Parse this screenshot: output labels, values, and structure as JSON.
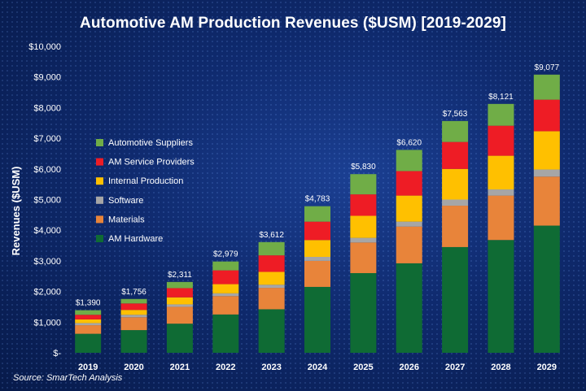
{
  "title": "Automotive AM Production Revenues ($USM) [2019-2029]",
  "source": "Source: SmarTech Analysis",
  "chart_data": {
    "type": "bar",
    "stacked": true,
    "title": "Automotive AM Production Revenues ($USM) [2019-2029]",
    "xlabel": "",
    "ylabel": "Revenues ($USM)",
    "ylim": [
      0,
      10000
    ],
    "yticks": [
      0,
      1000,
      2000,
      3000,
      4000,
      5000,
      6000,
      7000,
      8000,
      9000,
      10000
    ],
    "ytick_labels": [
      "$-",
      "$1,000",
      "$2,000",
      "$3,000",
      "$4,000",
      "$5,000",
      "$6,000",
      "$7,000",
      "$8,000",
      "$9,000",
      "$10,000"
    ],
    "categories": [
      "2019",
      "2020",
      "2021",
      "2022",
      "2023",
      "2024",
      "2025",
      "2026",
      "2027",
      "2028",
      "2029"
    ],
    "totals": [
      1390,
      1756,
      2311,
      2979,
      3612,
      4783,
      5830,
      6620,
      7563,
      8121,
      9077
    ],
    "total_labels": [
      "$1,390",
      "$1,756",
      "$2,311",
      "$2,979",
      "$3,612",
      "$4,783",
      "$5,830",
      "$6,620",
      "$7,563",
      "$8,121",
      "$9,077"
    ],
    "legend_position": "left",
    "grid": false,
    "series": [
      {
        "name": "AM Hardware",
        "color": "#0f6b34",
        "values": [
          620,
          740,
          950,
          1250,
          1420,
          2150,
          2600,
          2920,
          3450,
          3680,
          4150
        ]
      },
      {
        "name": "Materials",
        "color": "#e8843a",
        "values": [
          280,
          420,
          550,
          600,
          700,
          850,
          1000,
          1200,
          1350,
          1450,
          1600
        ]
      },
      {
        "name": "Software",
        "color": "#a6a6a6",
        "values": [
          70,
          80,
          80,
          90,
          100,
          130,
          150,
          160,
          200,
          200,
          230
        ]
      },
      {
        "name": "Internal Production",
        "color": "#ffc000",
        "values": [
          120,
          160,
          230,
          300,
          420,
          550,
          720,
          850,
          1000,
          1100,
          1250
        ]
      },
      {
        "name": "AM Service Providers",
        "color": "#ee1c25",
        "values": [
          150,
          210,
          300,
          450,
          540,
          600,
          700,
          800,
          880,
          980,
          1030
        ]
      },
      {
        "name": "Automotive Suppliers",
        "color": "#70ad47",
        "values": [
          150,
          146,
          201,
          289,
          432,
          503,
          660,
          690,
          683,
          711,
          817
        ]
      }
    ]
  }
}
